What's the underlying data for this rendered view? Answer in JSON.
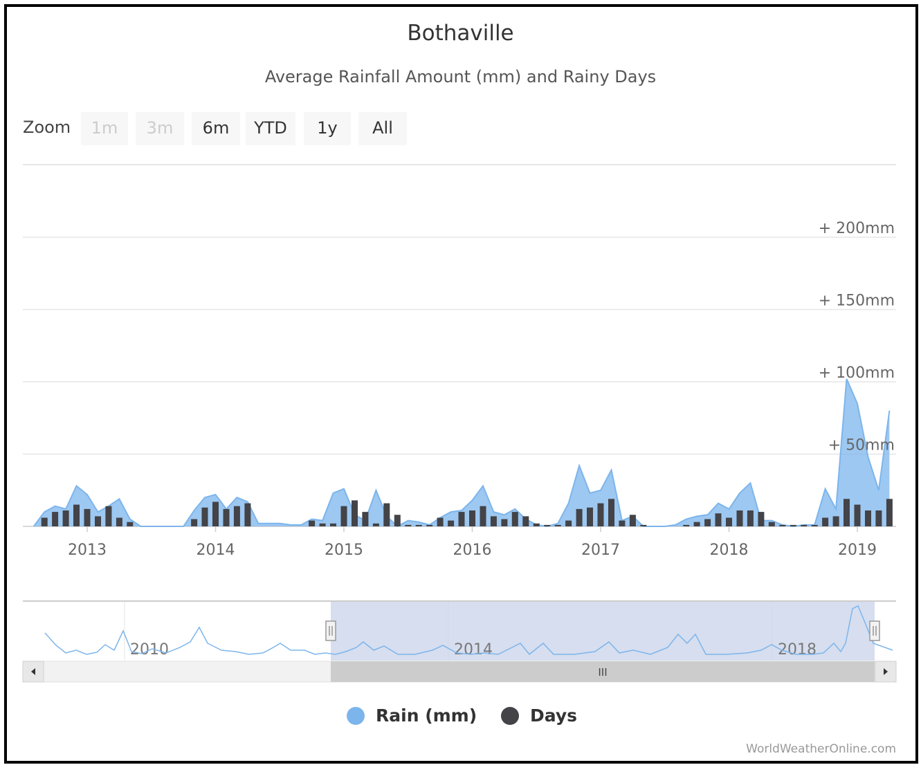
{
  "header": {
    "title": "Bothaville",
    "subtitle": "Average Rainfall Amount (mm) and Rainy Days"
  },
  "zoom": {
    "label": "Zoom",
    "buttons": [
      {
        "label": "1m",
        "enabled": false
      },
      {
        "label": "3m",
        "enabled": false
      },
      {
        "label": "6m",
        "enabled": true
      },
      {
        "label": "YTD",
        "enabled": true
      },
      {
        "label": "1y",
        "enabled": true
      },
      {
        "label": "All",
        "enabled": true
      }
    ]
  },
  "legend": {
    "rain_label": "Rain (mm)",
    "days_label": "Days"
  },
  "credits": "WorldWeatherOnline.com",
  "navigator": {
    "year_labels": [
      "2010",
      "2014",
      "2018"
    ],
    "scrollbar_grip": "III"
  },
  "colors": {
    "rain": "#7cb5ec",
    "days": "#434348",
    "navigator_mask": "#c8d3ea"
  },
  "chart_data": {
    "type": "area",
    "title": "Bothaville",
    "subtitle": "Average Rainfall Amount (mm) and Rainy Days",
    "x_tick_labels": [
      "2013",
      "2014",
      "2015",
      "2016",
      "2017",
      "2018",
      "2019"
    ],
    "y_tick_labels": [
      "+ 50mm",
      "+ 100mm",
      "+ 150mm",
      "+ 200mm"
    ],
    "y_range": [
      0,
      200
    ],
    "grid": true,
    "legend_position": "bottom-center",
    "series": [
      {
        "name": "Rain (mm)",
        "type": "area",
        "x": [
          "2012-08",
          "2012-09",
          "2012-10",
          "2012-11",
          "2012-12",
          "2013-01",
          "2013-02",
          "2013-03",
          "2013-04",
          "2013-05",
          "2013-06",
          "2013-07",
          "2013-08",
          "2013-09",
          "2013-10",
          "2013-11",
          "2013-12",
          "2014-01",
          "2014-02",
          "2014-03",
          "2014-04",
          "2014-05",
          "2014-06",
          "2014-07",
          "2014-08",
          "2014-09",
          "2014-10",
          "2014-11",
          "2014-12",
          "2015-01",
          "2015-02",
          "2015-03",
          "2015-04",
          "2015-05",
          "2015-06",
          "2015-07",
          "2015-08",
          "2015-09",
          "2015-10",
          "2015-11",
          "2015-12",
          "2016-01",
          "2016-02",
          "2016-03",
          "2016-04",
          "2016-05",
          "2016-06",
          "2016-07",
          "2016-08",
          "2016-09",
          "2016-10",
          "2016-11",
          "2016-12",
          "2017-01",
          "2017-02",
          "2017-03",
          "2017-04",
          "2017-05",
          "2017-06",
          "2017-07",
          "2017-08",
          "2017-09",
          "2017-10",
          "2017-11",
          "2017-12",
          "2018-01",
          "2018-02",
          "2018-03",
          "2018-04",
          "2018-05",
          "2018-06",
          "2018-07",
          "2018-08",
          "2018-09",
          "2018-10",
          "2018-11",
          "2018-12",
          "2019-01",
          "2019-02",
          "2019-03",
          "2019-04"
        ],
        "values": [
          0,
          10,
          14,
          12,
          28,
          22,
          10,
          14,
          19,
          5,
          0,
          0,
          0,
          0,
          0,
          11,
          20,
          22,
          12,
          20,
          17,
          2,
          2,
          2,
          1,
          1,
          5,
          4,
          23,
          26,
          8,
          4,
          25,
          7,
          0,
          4,
          3,
          1,
          6,
          10,
          11,
          18,
          28,
          10,
          8,
          12,
          5,
          1,
          0,
          2,
          16,
          42,
          23,
          25,
          39,
          4,
          7,
          0,
          0,
          0,
          1,
          5,
          7,
          8,
          16,
          12,
          23,
          30,
          4,
          4,
          1,
          0,
          1,
          1,
          26,
          12,
          102,
          85,
          48,
          25,
          80
        ]
      },
      {
        "name": "Days",
        "type": "column",
        "x": [
          "2012-09",
          "2012-10",
          "2012-11",
          "2012-12",
          "2013-01",
          "2013-02",
          "2013-03",
          "2013-04",
          "2013-05",
          "2013-11",
          "2013-12",
          "2014-01",
          "2014-02",
          "2014-03",
          "2014-04",
          "2014-10",
          "2014-11",
          "2014-12",
          "2015-01",
          "2015-02",
          "2015-03",
          "2015-04",
          "2015-05",
          "2015-06",
          "2015-07",
          "2015-08",
          "2015-09",
          "2015-10",
          "2015-11",
          "2015-12",
          "2016-01",
          "2016-02",
          "2016-03",
          "2016-04",
          "2016-05",
          "2016-06",
          "2016-07",
          "2016-08",
          "2016-09",
          "2016-10",
          "2016-11",
          "2016-12",
          "2017-01",
          "2017-02",
          "2017-03",
          "2017-04",
          "2017-05",
          "2017-09",
          "2017-10",
          "2017-11",
          "2017-12",
          "2018-01",
          "2018-02",
          "2018-03",
          "2018-04",
          "2018-05",
          "2018-06",
          "2018-07",
          "2018-08",
          "2018-09",
          "2018-10",
          "2018-11",
          "2018-12",
          "2019-01",
          "2019-02",
          "2019-03",
          "2019-04"
        ],
        "values": [
          6,
          10,
          11,
          15,
          12,
          7,
          14,
          6,
          3,
          5,
          13,
          17,
          12,
          14,
          16,
          4,
          2,
          2,
          14,
          18,
          10,
          2,
          16,
          8,
          1,
          1,
          1,
          6,
          4,
          10,
          11,
          14,
          7,
          5,
          10,
          7,
          2,
          1,
          1,
          4,
          12,
          13,
          16,
          19,
          4,
          8,
          1,
          1,
          3,
          5,
          9,
          6,
          11,
          11,
          10,
          3,
          1,
          1,
          1,
          1,
          6,
          7,
          19,
          15,
          11,
          11,
          19
        ]
      }
    ]
  }
}
